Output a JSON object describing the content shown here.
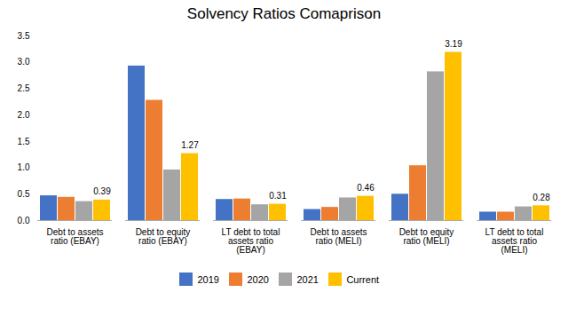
{
  "chart_data": {
    "type": "bar",
    "title": "Solvency Ratios Comaprison",
    "categories": [
      "Debt to assets\nratio (EBAY)",
      "Debt to equity\nratio (EBAY)",
      "LT debt to total\nassets ratio\n(EBAY)",
      "Debt to assets\nratio (MELI)",
      "Debt to equity\nratio (MELI)",
      "LT debt to total\nassets ratio\n(MELI)"
    ],
    "series": [
      {
        "name": "2019",
        "color": "#4472C4",
        "values": [
          0.47,
          2.93,
          0.4,
          0.21,
          0.5,
          0.16
        ]
      },
      {
        "name": "2020",
        "color": "#ED7D31",
        "values": [
          0.44,
          2.28,
          0.41,
          0.25,
          1.04,
          0.16
        ]
      },
      {
        "name": "2021",
        "color": "#A5A5A5",
        "values": [
          0.36,
          0.96,
          0.3,
          0.43,
          2.82,
          0.26
        ]
      },
      {
        "name": "Current",
        "color": "#FFC000",
        "values": [
          0.39,
          1.27,
          0.31,
          0.46,
          3.19,
          0.28
        ],
        "data_labels": true
      }
    ],
    "ylim": [
      0,
      3.5
    ],
    "yticks": [
      {
        "value": 0,
        "label": "0.0"
      },
      0.5,
      {
        "value": 1,
        "label": "1.0"
      },
      1.5,
      {
        "value": 2,
        "label": "2.0"
      },
      2.5,
      {
        "value": 3,
        "label": "3.0"
      },
      3.5
    ],
    "grid": false,
    "legend": "bottom"
  }
}
